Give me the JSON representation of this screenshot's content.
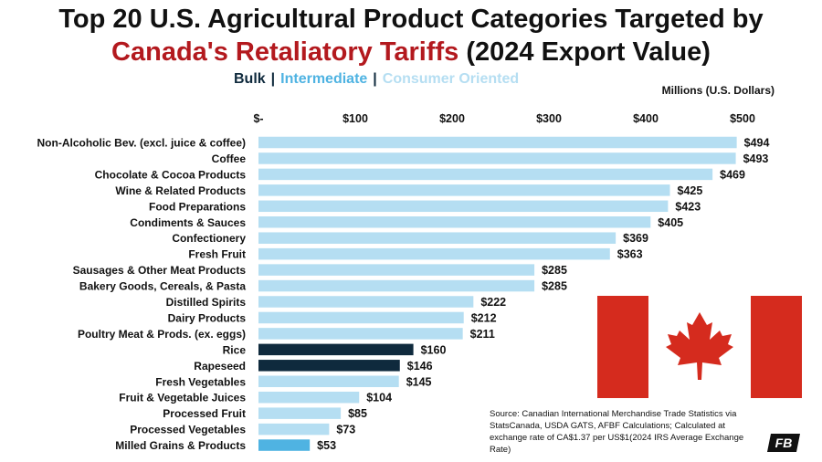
{
  "title": {
    "line1": "Top 20 U.S. Agricultural Product Categories Targeted by",
    "line2_red": "Canada's Retaliatory Tariffs",
    "line2_rest": " (2024 Export Value)"
  },
  "legend": {
    "bulk": "Bulk",
    "intermediate": "Intermediate",
    "consumer": "Consumer Oriented",
    "separator": "|"
  },
  "colors": {
    "bulk": "#0f2a3d",
    "intermediate": "#4fb3e2",
    "consumer": "#b5def2",
    "title_red": "#b3191e",
    "flag_red": "#d52b1e"
  },
  "units_label": "Millions (U.S. Dollars)",
  "source": "Source: Canadian International Merchandise Trade Statistics via StatsCanada, USDA GATS, AFBF Calculations; Calculated at exchange rate of CA$1.37 per US$1(2024 IRS Average Exchange Rate)",
  "logo_text": "FB",
  "chart_data": {
    "type": "bar",
    "orientation": "horizontal",
    "xlim": [
      0,
      500
    ],
    "x_ticks": [
      {
        "value": 0,
        "label": "$-"
      },
      {
        "value": 100,
        "label": "$100"
      },
      {
        "value": 200,
        "label": "$200"
      },
      {
        "value": 300,
        "label": "$300"
      },
      {
        "value": 400,
        "label": "$400"
      },
      {
        "value": 500,
        "label": "$500"
      }
    ],
    "x_axis_position": "top",
    "grid": false,
    "categories": [
      "Non-Alcoholic Bev. (excl. juice & coffee)",
      "Coffee",
      "Chocolate & Cocoa Products",
      "Wine & Related Products",
      "Food Preparations",
      "Condiments & Sauces",
      "Confectionery",
      "Fresh Fruit",
      "Sausages & Other Meat Products",
      "Bakery Goods, Cereals, & Pasta",
      "Distilled Spirits",
      "Dairy Products",
      "Poultry Meat & Prods. (ex. eggs)",
      "Rice",
      "Rapeseed",
      "Fresh Vegetables",
      "Fruit & Vegetable Juices",
      "Processed Fruit",
      "Processed Vegetables",
      "Milled Grains & Products"
    ],
    "values": [
      494,
      493,
      469,
      425,
      423,
      405,
      369,
      363,
      285,
      285,
      222,
      212,
      211,
      160,
      146,
      145,
      104,
      85,
      73,
      53
    ],
    "data_labels": [
      "$494",
      "$493",
      "$469",
      "$425",
      "$423",
      "$405",
      "$369",
      "$363",
      "$285",
      "$285",
      "$222",
      "$212",
      "$211",
      "$160",
      "$146",
      "$145",
      "$104",
      "$85",
      "$73",
      "$53"
    ],
    "groups": [
      "consumer",
      "consumer",
      "consumer",
      "consumer",
      "consumer",
      "consumer",
      "consumer",
      "consumer",
      "consumer",
      "consumer",
      "consumer",
      "consumer",
      "consumer",
      "bulk",
      "bulk",
      "consumer",
      "consumer",
      "consumer",
      "consumer",
      "intermediate"
    ]
  }
}
